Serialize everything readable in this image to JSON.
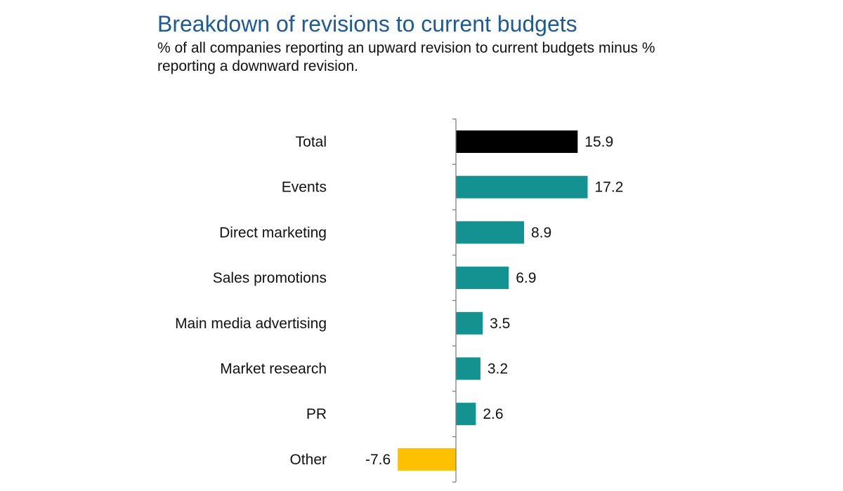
{
  "chart_data": {
    "type": "bar",
    "orientation": "horizontal",
    "title": "Breakdown of revisions to current budgets",
    "subtitle": "% of all companies reporting an upward revision to current budgets minus % reporting a downward revision.",
    "xlabel": "",
    "ylabel": "",
    "categories": [
      "Total",
      "Events",
      "Direct marketing",
      "Sales promotions",
      "Main media advertising",
      "Market research",
      "PR",
      "Other"
    ],
    "values": [
      15.9,
      17.2,
      8.9,
      6.9,
      3.5,
      3.2,
      2.6,
      -7.6
    ],
    "value_labels": [
      "15.9",
      "17.2",
      "8.9",
      "6.9",
      "3.5",
      "3.2",
      "2.6",
      "-7.6"
    ],
    "colors": [
      "#000000",
      "#149191",
      "#149191",
      "#149191",
      "#149191",
      "#149191",
      "#149191",
      "#ffc000"
    ],
    "xlim": [
      -7.6,
      17.2
    ],
    "grid": false,
    "legend": "none"
  }
}
